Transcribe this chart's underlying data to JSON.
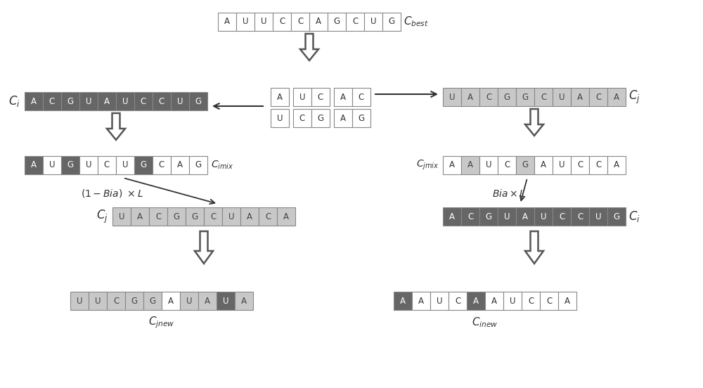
{
  "bg_color": "#ffffff",
  "dark_gray": "#666666",
  "light_gray": "#c8c8c8",
  "white_cell": "#ffffff",
  "border_color": "#888888",
  "cbest_seq": [
    "A",
    "U",
    "U",
    "C",
    "C",
    "A",
    "G",
    "C",
    "U",
    "G"
  ],
  "ci_seq": [
    "A",
    "C",
    "G",
    "U",
    "A",
    "U",
    "C",
    "C",
    "U",
    "G"
  ],
  "cj_seq": [
    "U",
    "A",
    "C",
    "G",
    "G",
    "C",
    "U",
    "A",
    "C",
    "A"
  ],
  "cross_top": [
    "A",
    "",
    "U",
    "C",
    "",
    "A",
    "",
    "C"
  ],
  "cross_bot": [
    "U",
    "",
    "",
    "C",
    "",
    "G",
    "",
    "A",
    "G"
  ],
  "cimix_seq": [
    "A",
    "U",
    "G",
    "U",
    "C",
    "U",
    "G",
    "C",
    "A",
    "G"
  ],
  "cimix_colors": [
    "dark",
    "white",
    "dark",
    "white",
    "white",
    "white",
    "dark",
    "white",
    "white",
    "white"
  ],
  "cjmix_seq": [
    "A",
    "A",
    "U",
    "C",
    "G",
    "A",
    "U",
    "C",
    "C",
    "A"
  ],
  "cjmix_colors": [
    "white",
    "light",
    "white",
    "white",
    "light",
    "white",
    "white",
    "white",
    "white",
    "white"
  ],
  "cj_mid_seq": [
    "U",
    "A",
    "C",
    "G",
    "G",
    "C",
    "U",
    "A",
    "C",
    "A"
  ],
  "cj_mid_colors": [
    "light",
    "light",
    "light",
    "light",
    "light",
    "light",
    "light",
    "light",
    "light",
    "light"
  ],
  "ci_mid_seq": [
    "A",
    "C",
    "G",
    "U",
    "A",
    "U",
    "C",
    "C",
    "U",
    "G"
  ],
  "ci_mid_colors": [
    "dark",
    "dark",
    "dark",
    "dark",
    "dark",
    "dark",
    "dark",
    "dark",
    "dark",
    "dark"
  ],
  "cjnew_seq": [
    "U",
    "U",
    "C",
    "G",
    "G",
    "A",
    "U",
    "A",
    "U",
    "A"
  ],
  "cjnew_colors": [
    "light",
    "light",
    "light",
    "light",
    "light",
    "white",
    "light",
    "light",
    "dark",
    "light"
  ],
  "cinew_seq": [
    "A",
    "A",
    "U",
    "C",
    "A",
    "A",
    "U",
    "C",
    "C",
    "A"
  ],
  "cinew_colors": [
    "dark",
    "white",
    "white",
    "white",
    "dark",
    "white",
    "white",
    "white",
    "white",
    "white"
  ]
}
